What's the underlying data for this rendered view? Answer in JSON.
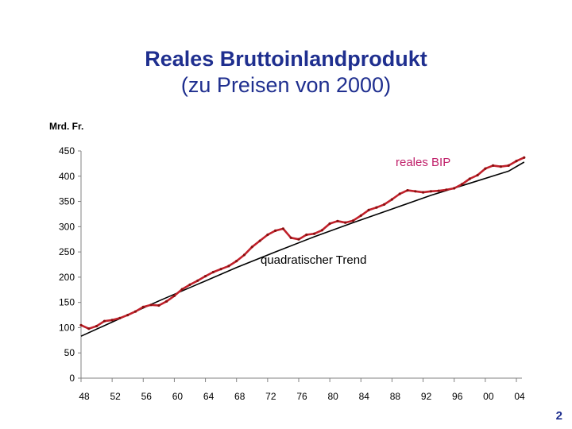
{
  "title_line1": "Reales Bruttoinlandprodukt",
  "title_line2": "(zu Preisen von 2000)",
  "unit_label": "Mrd. Fr.",
  "page_number": "2",
  "colors": {
    "title": "#1f2f8f",
    "real_gdp": "#c0202a",
    "trend": "#000000",
    "annotation_red": "#c0206a"
  },
  "chart_data": {
    "type": "line",
    "title": "Reales Bruttoinlandprodukt (zu Preisen von 2000)",
    "ylabel": "Mrd. Fr.",
    "ylim": [
      0,
      450
    ],
    "xlim": [
      1948,
      2005
    ],
    "yticks": [
      0,
      50,
      100,
      150,
      200,
      250,
      300,
      350,
      400,
      450
    ],
    "xticks": [
      1948,
      1952,
      1956,
      1960,
      1964,
      1968,
      1972,
      1976,
      1980,
      1984,
      1988,
      1992,
      1996,
      2000,
      2004
    ],
    "xtick_labels": [
      "48",
      "52",
      "56",
      "60",
      "64",
      "68",
      "72",
      "76",
      "80",
      "84",
      "88",
      "92",
      "96",
      "00",
      "04"
    ],
    "grid": false,
    "annotations": [
      {
        "text": "reales BIP",
        "series": "reales BIP"
      },
      {
        "text": "quadratischer Trend",
        "series": "quadratischer Trend"
      }
    ],
    "series": [
      {
        "name": "reales BIP",
        "x": [
          1948,
          1949,
          1950,
          1951,
          1952,
          1953,
          1954,
          1955,
          1956,
          1957,
          1958,
          1959,
          1960,
          1961,
          1962,
          1963,
          1964,
          1965,
          1966,
          1967,
          1968,
          1969,
          1970,
          1971,
          1972,
          1973,
          1974,
          1975,
          1976,
          1977,
          1978,
          1979,
          1980,
          1981,
          1982,
          1983,
          1984,
          1985,
          1986,
          1987,
          1988,
          1989,
          1990,
          1991,
          1992,
          1993,
          1994,
          1995,
          1996,
          1997,
          1998,
          1999,
          2000,
          2001,
          2002,
          2003,
          2004,
          2005
        ],
        "values": [
          105,
          98,
          103,
          113,
          115,
          119,
          125,
          132,
          141,
          145,
          144,
          152,
          163,
          176,
          185,
          193,
          202,
          210,
          216,
          222,
          232,
          244,
          260,
          272,
          284,
          292,
          296,
          278,
          275,
          284,
          286,
          293,
          306,
          311,
          308,
          312,
          322,
          333,
          338,
          344,
          354,
          365,
          372,
          370,
          368,
          370,
          371,
          373,
          376,
          384,
          395,
          402,
          415,
          421,
          419,
          421,
          430,
          437
        ]
      },
      {
        "name": "quadratischer Trend",
        "x": [
          1948,
          1953,
          1958,
          1963,
          1968,
          1973,
          1978,
          1983,
          1988,
          1993,
          1998,
          2003,
          2005
        ],
        "values": [
          83,
          118,
          153,
          186,
          219,
          250,
          280,
          308,
          335,
          362,
          386,
          410,
          428
        ]
      }
    ]
  }
}
